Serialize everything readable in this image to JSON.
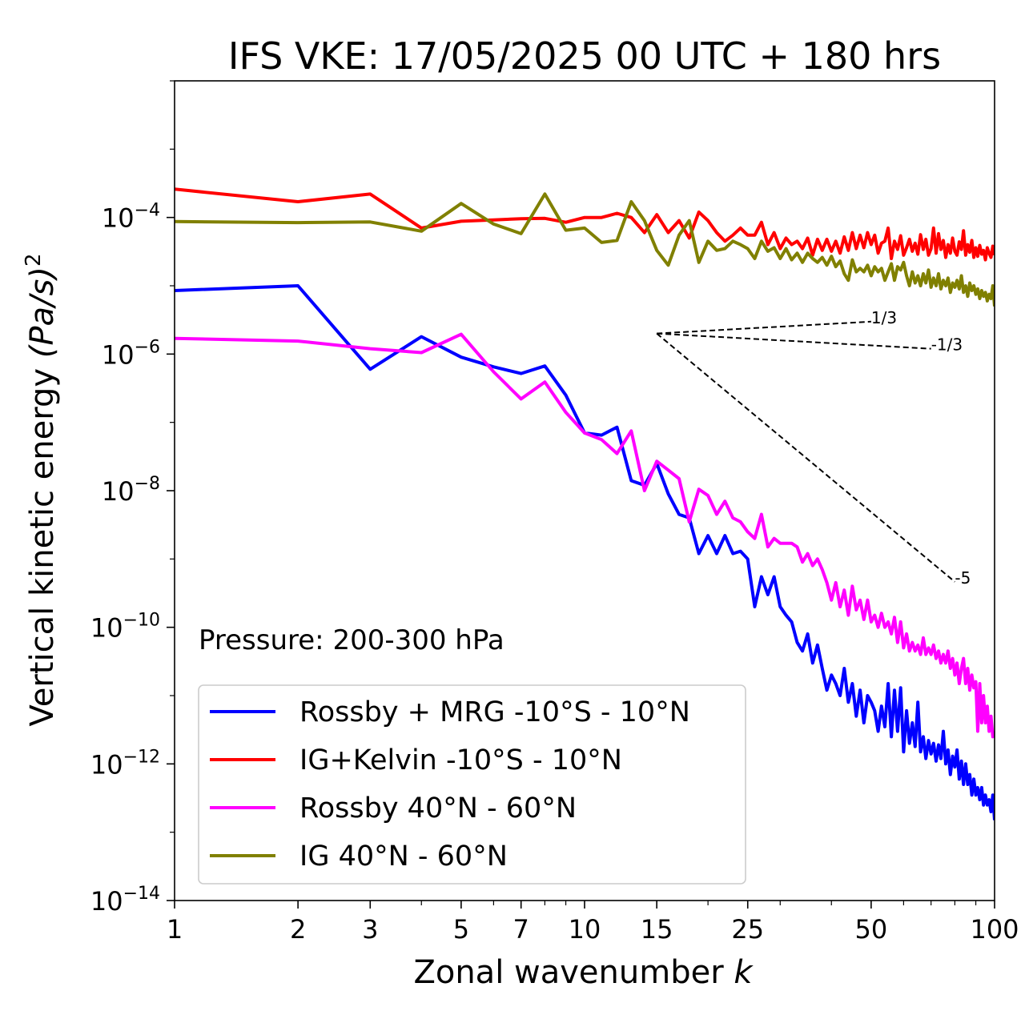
{
  "chart_data": {
    "type": "line",
    "title": "IFS VKE: 17/05/2025 00 UTC + 180 hrs",
    "xlabel": "Zonal wavenumber",
    "xlabel_var": "k",
    "ylabel": "Vertical kinetic energy",
    "ylabel_units": "(Pa/s)",
    "ylabel_power": "2",
    "xscale": "log",
    "yscale": "log",
    "xlim": [
      1,
      100
    ],
    "ylim": [
      1e-14,
      0.01
    ],
    "xticks": [
      1,
      2,
      3,
      5,
      7,
      10,
      15,
      25,
      50,
      100
    ],
    "xtick_labels": [
      "1",
      "2",
      "3",
      "5",
      "7",
      "10",
      "15",
      "25",
      "50",
      "100"
    ],
    "yticks": [
      -14,
      -12,
      -10,
      -8,
      -6,
      -4
    ],
    "ytick_base": "10",
    "ytick_exponents": [
      "−14",
      "−12",
      "−10",
      "−8",
      "−6",
      "−4"
    ],
    "annotation": "Pressure: 200-300 hPa",
    "legend_position": "lower-left",
    "grid": false,
    "series": [
      {
        "name": "Rossby + MRG -10°S - 10°N",
        "color": "#0000ff",
        "x": [
          1,
          2,
          3,
          4,
          5,
          6,
          7,
          8,
          9,
          10,
          11,
          12,
          13,
          14,
          15,
          16,
          17,
          18,
          19,
          20,
          21,
          22,
          23,
          24,
          25,
          26,
          27,
          28,
          29,
          30,
          31,
          32,
          33,
          34,
          35,
          36,
          37,
          38,
          39,
          40,
          41,
          42,
          43,
          44,
          45,
          46,
          47,
          48,
          49,
          50,
          51,
          52,
          53,
          54,
          55,
          56,
          57,
          58,
          59,
          60,
          61,
          62,
          63,
          64,
          65,
          66,
          67,
          68,
          69,
          70,
          71,
          72,
          73,
          74,
          75,
          76,
          77,
          78,
          79,
          80,
          81,
          82,
          83,
          84,
          85,
          86,
          87,
          88,
          89,
          90,
          91,
          92,
          93,
          94,
          95,
          96,
          97,
          98,
          99,
          100
        ],
        "y": [
          8.5e-06,
          1e-05,
          6e-07,
          1.8e-06,
          9e-07,
          6.5e-07,
          5.2e-07,
          6.7e-07,
          2.5e-07,
          7e-08,
          6.5e-08,
          8.5e-08,
          1.4e-08,
          1.2e-08,
          2.5e-08,
          9e-09,
          4.5e-09,
          4e-09,
          1.2e-09,
          2.2e-09,
          1.2e-09,
          2.2e-09,
          1.2e-09,
          1.3e-09,
          1e-09,
          2e-10,
          5.5e-10,
          3e-10,
          5.5e-10,
          2e-10,
          1.5e-10,
          1.2e-10,
          6e-11,
          4.5e-11,
          8e-11,
          3e-11,
          5.5e-11,
          2.5e-11,
          1.2e-11,
          2e-11,
          1.5e-11,
          1e-11,
          2.5e-11,
          8e-12,
          1.5e-11,
          5e-12,
          1.2e-11,
          4e-12,
          1e-11,
          8e-12,
          6e-12,
          3e-12,
          7e-12,
          3.5e-12,
          1.5e-11,
          2.5e-12,
          1.2e-11,
          3e-12,
          1.3e-11,
          1.5e-12,
          6e-12,
          2e-12,
          4e-12,
          1.8e-12,
          8e-12,
          1.5e-12,
          2.5e-12,
          1.2e-12,
          2.2e-12,
          1.4e-12,
          2e-12,
          1.1e-12,
          1.9e-12,
          1.2e-12,
          3e-12,
          1e-12,
          1.6e-12,
          7e-13,
          1.3e-12,
          9e-13,
          1.6e-12,
          6e-13,
          1.1e-12,
          5e-13,
          1e-12,
          5e-13,
          7e-13,
          3.5e-13,
          6e-13,
          3.5e-13,
          4.5e-13,
          3e-13,
          4.5e-13,
          2.5e-13,
          3.5e-13,
          2.5e-13,
          3e-13,
          2e-13,
          3.5e-13,
          1.5e-13
        ]
      },
      {
        "name": "IG+Kelvin -10°S - 10°N",
        "color": "#ff0000",
        "x": [
          1,
          2,
          3,
          4,
          5,
          6,
          7,
          8,
          9,
          10,
          11,
          12,
          13,
          14,
          15,
          16,
          17,
          18,
          19,
          20,
          21,
          22,
          23,
          24,
          25,
          26,
          27,
          28,
          29,
          30,
          31,
          32,
          33,
          34,
          35,
          36,
          37,
          38,
          39,
          40,
          41,
          42,
          43,
          44,
          45,
          46,
          47,
          48,
          49,
          50,
          51,
          52,
          53,
          54,
          55,
          56,
          57,
          58,
          59,
          60,
          61,
          62,
          63,
          64,
          65,
          66,
          67,
          68,
          69,
          70,
          71,
          72,
          73,
          74,
          75,
          76,
          77,
          78,
          79,
          80,
          81,
          82,
          83,
          84,
          85,
          86,
          87,
          88,
          89,
          90,
          91,
          92,
          93,
          94,
          95,
          96,
          97,
          98,
          99,
          100
        ],
        "y": [
          0.00026,
          0.00017,
          0.00022,
          7e-05,
          8.8e-05,
          9.2e-05,
          9.6e-05,
          9.7e-05,
          8.5e-05,
          0.0001,
          0.0001,
          0.000115,
          0.0001,
          6e-05,
          0.00011,
          6e-05,
          9e-05,
          5e-05,
          0.00012,
          9e-05,
          6e-05,
          4.5e-05,
          5.5e-05,
          7e-05,
          5.5e-05,
          5.5e-05,
          8.5e-05,
          4e-05,
          6e-05,
          3.5e-05,
          5e-05,
          4e-05,
          4.5e-05,
          3.5e-05,
          5e-05,
          2.8e-05,
          4.8e-05,
          3.3e-05,
          4.8e-05,
          3.2e-05,
          4.5e-05,
          3e-05,
          5.2e-05,
          3.3e-05,
          6e-05,
          3.5e-05,
          5.5e-05,
          3.6e-05,
          6e-05,
          4e-05,
          5.5e-05,
          3e-05,
          4.2e-05,
          4.5e-05,
          7e-05,
          2.5e-05,
          4.5e-05,
          3.4e-05,
          5.4e-05,
          2.8e-05,
          3.6e-05,
          4.8e-05,
          3.2e-05,
          4.2e-05,
          2.9e-05,
          5.6e-05,
          3.4e-05,
          4.8e-05,
          2.8e-05,
          3.5e-05,
          7e-05,
          3e-05,
          5.8e-05,
          3.4e-05,
          4.6e-05,
          2.6e-05,
          4e-05,
          3e-05,
          5e-05,
          3.2e-05,
          2.8e-05,
          4.4e-05,
          3.4e-05,
          6.4e-05,
          2.8e-05,
          4e-05,
          3.1e-05,
          4.6e-05,
          2.6e-05,
          3.6e-05,
          2.7e-05,
          3.9e-05,
          2.9e-05,
          3.3e-05,
          2.4e-05,
          3.6e-05,
          3e-05,
          2.6e-05,
          3.8e-05,
          2.8e-05
        ]
      },
      {
        "name": "Rossby 40°N - 60°N",
        "color": "#ff00ff",
        "x": [
          1,
          2,
          3,
          4,
          5,
          6,
          7,
          8,
          9,
          10,
          11,
          12,
          13,
          14,
          15,
          16,
          17,
          18,
          19,
          20,
          21,
          22,
          23,
          24,
          25,
          26,
          27,
          28,
          29,
          30,
          31,
          32,
          33,
          34,
          35,
          36,
          37,
          38,
          39,
          40,
          41,
          42,
          43,
          44,
          45,
          46,
          47,
          48,
          49,
          50,
          51,
          52,
          53,
          54,
          55,
          56,
          57,
          58,
          59,
          60,
          61,
          62,
          63,
          64,
          65,
          66,
          67,
          68,
          69,
          70,
          71,
          72,
          73,
          74,
          75,
          76,
          77,
          78,
          79,
          80,
          81,
          82,
          83,
          84,
          85,
          86,
          87,
          88,
          89,
          90,
          91,
          92,
          93,
          94,
          95,
          96,
          97,
          98,
          99,
          100
        ],
        "y": [
          1.7e-06,
          1.55e-06,
          1.2e-06,
          1.05e-06,
          1.95e-06,
          5.5e-07,
          2.2e-07,
          3.9e-07,
          1.4e-07,
          7e-08,
          5.6e-08,
          3.5e-08,
          7.5e-08,
          1e-08,
          2.7e-08,
          2e-08,
          1.5e-08,
          3.5e-09,
          1.05e-08,
          8.5e-09,
          4.5e-09,
          7e-09,
          4e-09,
          3.5e-09,
          2.5e-09,
          2e-09,
          4.5e-09,
          1.5e-09,
          2e-09,
          1.7e-09,
          1.7e-09,
          1.7e-09,
          1.5e-09,
          9e-10,
          1.2e-09,
          8e-10,
          1e-09,
          7e-10,
          4.5e-10,
          2.5e-10,
          4.5e-10,
          2e-10,
          3.5e-10,
          1.5e-10,
          4e-10,
          1.8e-10,
          2.5e-10,
          1.3e-10,
          2.5e-10,
          1.2e-10,
          1.5e-10,
          1e-10,
          1.6e-10,
          1e-10,
          1.2e-10,
          8e-11,
          1.4e-10,
          6e-11,
          1.2e-10,
          5e-11,
          8e-11,
          4.5e-11,
          6e-11,
          4.5e-11,
          5.5e-11,
          4e-11,
          7e-11,
          4e-11,
          5e-11,
          4e-11,
          5.5e-11,
          3.5e-11,
          4.5e-11,
          3e-11,
          4e-11,
          3e-11,
          4.5e-11,
          2.5e-11,
          3.5e-11,
          2e-11,
          3e-11,
          1.5e-11,
          2.5e-11,
          3.5e-11,
          1.5e-11,
          2.5e-11,
          1.2e-11,
          2e-11,
          1.3e-11,
          1.6e-11,
          3e-12,
          1.5e-11,
          4e-12,
          1e-11,
          4e-12,
          7e-12,
          3e-12,
          5e-12,
          2.5e-12,
          3e-12
        ]
      },
      {
        "name": "IG 40°N - 60°N",
        "color": "#808000",
        "x": [
          1,
          2,
          3,
          4,
          5,
          6,
          7,
          8,
          9,
          10,
          11,
          12,
          13,
          14,
          15,
          16,
          17,
          18,
          19,
          20,
          21,
          22,
          23,
          24,
          25,
          26,
          27,
          28,
          29,
          30,
          31,
          32,
          33,
          34,
          35,
          36,
          37,
          38,
          39,
          40,
          41,
          42,
          43,
          44,
          45,
          46,
          47,
          48,
          49,
          50,
          51,
          52,
          53,
          54,
          55,
          56,
          57,
          58,
          59,
          60,
          61,
          62,
          63,
          64,
          65,
          66,
          67,
          68,
          69,
          70,
          71,
          72,
          73,
          74,
          75,
          76,
          77,
          78,
          79,
          80,
          81,
          82,
          83,
          84,
          85,
          86,
          87,
          88,
          89,
          90,
          91,
          92,
          93,
          94,
          95,
          96,
          97,
          98,
          99,
          100
        ],
        "y": [
          8.7e-05,
          8.4e-05,
          8.6e-05,
          6.3e-05,
          0.00016,
          8e-05,
          5.8e-05,
          0.00022,
          6.5e-05,
          7e-05,
          4.3e-05,
          4.6e-05,
          0.00017,
          9e-05,
          3.3e-05,
          2e-05,
          5.5e-05,
          9e-05,
          2.2e-05,
          4.5e-05,
          3.3e-05,
          3.5e-05,
          4.5e-05,
          4e-05,
          3.5e-05,
          2.5e-05,
          4.5e-05,
          3.2e-05,
          3.6e-05,
          2.5e-05,
          3.5e-05,
          2.4e-05,
          3e-05,
          2.2e-05,
          3e-05,
          2.5e-05,
          2.2e-05,
          2.6e-05,
          2e-05,
          2.7e-05,
          1.9e-05,
          2.3e-05,
          1.5e-05,
          1.2e-05,
          2.4e-05,
          1.6e-05,
          1.8e-05,
          1.6e-05,
          2e-05,
          1.4e-05,
          1.9e-05,
          1.6e-05,
          1.8e-05,
          1.2e-05,
          1.6e-05,
          2.1e-05,
          1.2e-05,
          1.9e-05,
          1.7e-05,
          2.2e-05,
          1.4e-05,
          1e-05,
          1.6e-05,
          1.1e-05,
          1.4e-05,
          1e-05,
          1.5e-05,
          1.1e-05,
          1.7e-05,
          9.5e-06,
          1.3e-05,
          1e-05,
          1.5e-05,
          9e-06,
          1.2e-05,
          1e-05,
          1.3e-05,
          8e-06,
          1.1e-05,
          9.5e-06,
          1.2e-05,
          9e-06,
          1.4e-05,
          8e-06,
          1e-05,
          7e-06,
          1.1e-05,
          8.5e-06,
          1e-05,
          7.5e-06,
          9e-06,
          6.5e-06,
          8.5e-06,
          7e-06,
          8e-06,
          6e-06,
          7.5e-06,
          6.5e-06,
          1e-05,
          5e-06
        ]
      }
    ],
    "reference_slopes": [
      {
        "label": "1/3",
        "slope": 0.3333,
        "x_start": 15,
        "x_end": 50,
        "y_start": 2e-06
      },
      {
        "label": "-1/3",
        "slope": -0.3333,
        "x_start": 15,
        "x_end": 70,
        "y_start": 2e-06
      },
      {
        "label": "-5",
        "slope": -5,
        "x_start": 15,
        "x_end": 80,
        "y_start": 2e-06
      }
    ]
  }
}
